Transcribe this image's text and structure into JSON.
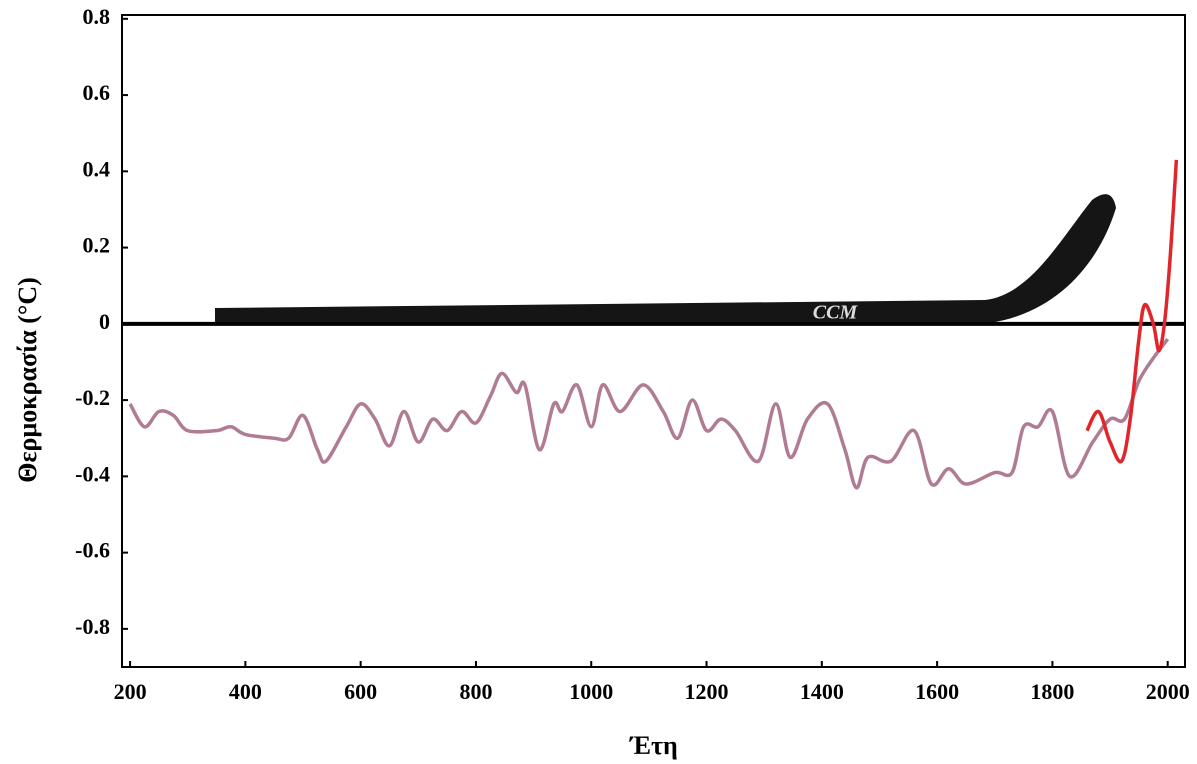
{
  "chart_data": {
    "type": "line",
    "ylabel": "Θερμοκρασία  (°C)",
    "xlabel": "Έτη",
    "annotations": [
      "CCM"
    ],
    "xlim": [
      186,
      2030
    ],
    "ylim": [
      -0.9,
      0.81
    ],
    "xticks": [
      200,
      400,
      600,
      800,
      1000,
      1200,
      1400,
      1600,
      1800,
      2000
    ],
    "yticks": [
      0.8,
      0.6,
      0.4,
      0.2,
      0,
      -0.2,
      -0.4,
      -0.6,
      -0.8
    ],
    "zero_line": true,
    "series": [
      {
        "color": "#b07c93",
        "x": [
          200,
          225,
          250,
          275,
          300,
          350,
          375,
          400,
          450,
          475,
          500,
          525,
          540,
          575,
          600,
          625,
          650,
          675,
          700,
          725,
          750,
          775,
          800,
          825,
          845,
          870,
          885,
          910,
          935,
          950,
          975,
          1000,
          1020,
          1050,
          1090,
          1125,
          1150,
          1175,
          1200,
          1225,
          1250,
          1290,
          1320,
          1345,
          1375,
          1410,
          1440,
          1460,
          1480,
          1520,
          1560,
          1590,
          1620,
          1650,
          1700,
          1730,
          1750,
          1775,
          1800,
          1830,
          1870,
          1900,
          1925,
          1950,
          1975,
          2000
        ],
        "values": [
          -0.21,
          -0.27,
          -0.23,
          -0.24,
          -0.28,
          -0.28,
          -0.27,
          -0.29,
          -0.3,
          -0.3,
          -0.24,
          -0.33,
          -0.36,
          -0.27,
          -0.21,
          -0.25,
          -0.32,
          -0.23,
          -0.31,
          -0.25,
          -0.28,
          -0.23,
          -0.26,
          -0.19,
          -0.13,
          -0.18,
          -0.16,
          -0.33,
          -0.21,
          -0.23,
          -0.16,
          -0.27,
          -0.16,
          -0.23,
          -0.16,
          -0.23,
          -0.3,
          -0.2,
          -0.28,
          -0.25,
          -0.28,
          -0.36,
          -0.21,
          -0.35,
          -0.25,
          -0.21,
          -0.33,
          -0.43,
          -0.35,
          -0.36,
          -0.28,
          -0.42,
          -0.38,
          -0.42,
          -0.39,
          -0.39,
          -0.27,
          -0.27,
          -0.23,
          -0.4,
          -0.31,
          -0.25,
          -0.25,
          -0.15,
          -0.09,
          -0.04
        ]
      },
      {
        "color": "#e0262b",
        "x": [
          1860,
          1880,
          1900,
          1920,
          1935,
          1950,
          1960,
          1975,
          1985,
          1995,
          2005,
          2015
        ],
        "values": [
          -0.28,
          -0.23,
          -0.31,
          -0.36,
          -0.25,
          -0.04,
          0.05,
          0,
          -0.07,
          0.01,
          0.19,
          0.43
        ]
      }
    ]
  }
}
